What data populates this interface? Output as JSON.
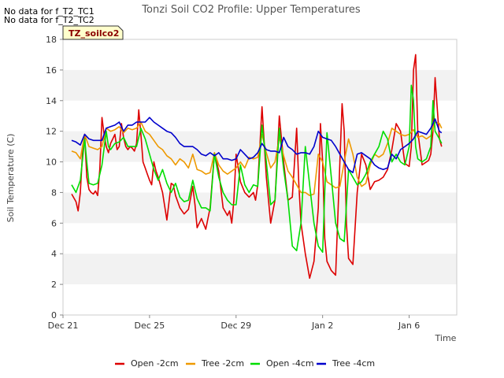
{
  "notes": [
    "No data for f_T2_TC1",
    "No data for f_T2_TC2"
  ],
  "tag_label": "TZ_soilco2",
  "chart_data": {
    "type": "line",
    "title": "Tonzi Soil CO2 Profile: Upper Temperatures",
    "xlabel": "Time",
    "ylabel": "Soil Temperature (C)",
    "ylim": [
      0,
      18
    ],
    "xlim": [
      0,
      18.2
    ],
    "yticks": [
      0,
      2,
      4,
      6,
      8,
      10,
      12,
      14,
      16,
      18
    ],
    "xticks": [
      {
        "label": "Dec 21",
        "value": 0
      },
      {
        "label": "Dec 25",
        "value": 4
      },
      {
        "label": "Dec 29",
        "value": 8
      },
      {
        "label": "Jan 2",
        "value": 12
      },
      {
        "label": "Jan 6",
        "value": 16
      }
    ],
    "grid": "horizontal alternating bands",
    "legend_position": "bottom",
    "series": [
      {
        "name": "Open -2cm",
        "color": "#dd0000",
        "x": [
          0.4,
          0.6,
          0.7,
          0.8,
          0.9,
          1.0,
          1.1,
          1.2,
          1.3,
          1.4,
          1.5,
          1.6,
          1.7,
          1.8,
          1.9,
          2.0,
          2.1,
          2.2,
          2.3,
          2.4,
          2.5,
          2.6,
          2.7,
          2.8,
          2.9,
          3.0,
          3.1,
          3.2,
          3.3,
          3.4,
          3.5,
          3.6,
          3.7,
          3.8,
          3.9,
          4.0,
          4.1,
          4.2,
          4.3,
          4.4,
          4.6,
          4.8,
          5.0,
          5.1,
          5.2,
          5.4,
          5.6,
          5.8,
          6.0,
          6.1,
          6.2,
          6.4,
          6.6,
          6.8,
          7.0,
          7.2,
          7.4,
          7.6,
          7.7,
          7.8,
          7.9,
          8.0,
          8.2,
          8.4,
          8.6,
          8.8,
          8.9,
          9.0,
          9.2,
          9.4,
          9.6,
          9.8,
          10.0,
          10.2,
          10.4,
          10.6,
          10.8,
          10.9,
          11.0,
          11.2,
          11.4,
          11.6,
          11.8,
          11.9,
          12.0,
          12.1,
          12.2,
          12.4,
          12.6,
          12.8,
          12.9,
          13.0,
          13.1,
          13.2,
          13.4,
          13.6,
          13.8,
          14.0,
          14.2,
          14.4,
          14.6,
          14.8,
          15.0,
          15.2,
          15.4,
          15.6,
          15.8,
          15.9,
          16.0,
          16.1,
          16.2,
          16.3,
          16.4,
          16.6,
          16.8,
          16.9,
          17.0,
          17.1,
          17.2,
          17.4,
          17.5
        ],
        "y": [
          7.9,
          7.4,
          6.8,
          8.0,
          10.5,
          11.8,
          9.0,
          8.2,
          8.0,
          7.9,
          8.1,
          7.8,
          9.5,
          12.9,
          11.8,
          11.0,
          10.6,
          11.2,
          11.5,
          11.8,
          10.8,
          11.0,
          12.5,
          11.6,
          11.0,
          10.8,
          11.0,
          10.9,
          10.7,
          11.2,
          13.4,
          11.8,
          10.0,
          9.6,
          9.2,
          8.8,
          8.5,
          10.0,
          9.4,
          9.0,
          8.0,
          6.2,
          8.6,
          8.5,
          7.8,
          7.0,
          6.6,
          6.9,
          8.4,
          7.2,
          5.7,
          6.3,
          5.6,
          7.0,
          10.6,
          9.4,
          7.0,
          6.5,
          6.8,
          6.0,
          7.5,
          10.5,
          8.7,
          8.0,
          7.7,
          8.0,
          7.5,
          8.5,
          13.6,
          9.0,
          6.0,
          7.5,
          13.0,
          10.0,
          7.5,
          7.7,
          12.2,
          8.5,
          6.0,
          4.0,
          2.4,
          3.5,
          7.0,
          12.5,
          10.0,
          5.0,
          3.5,
          2.9,
          2.6,
          10.0,
          13.8,
          12.0,
          6.0,
          3.7,
          3.3,
          8.0,
          10.5,
          9.8,
          8.2,
          8.7,
          8.8,
          9.0,
          9.5,
          10.8,
          12.5,
          12.0,
          9.9,
          9.8,
          9.7,
          11.0,
          16.0,
          17.0,
          12.0,
          9.8,
          10.0,
          10.1,
          10.5,
          12.0,
          15.5,
          11.5,
          11.0
        ]
      },
      {
        "name": "Tree -2cm",
        "color": "#ee9900",
        "x": [
          0.4,
          0.6,
          0.8,
          1.0,
          1.2,
          1.4,
          1.6,
          1.8,
          2.0,
          2.2,
          2.4,
          2.6,
          2.8,
          3.0,
          3.2,
          3.4,
          3.6,
          3.8,
          4.0,
          4.2,
          4.4,
          4.6,
          4.8,
          5.0,
          5.2,
          5.4,
          5.6,
          5.8,
          6.0,
          6.2,
          6.4,
          6.6,
          6.8,
          7.0,
          7.2,
          7.4,
          7.6,
          7.8,
          8.0,
          8.2,
          8.4,
          8.6,
          8.8,
          9.0,
          9.2,
          9.4,
          9.6,
          9.8,
          10.0,
          10.2,
          10.4,
          10.6,
          10.8,
          11.0,
          11.2,
          11.4,
          11.6,
          11.8,
          12.0,
          12.2,
          12.4,
          12.6,
          12.8,
          13.0,
          13.2,
          13.4,
          13.6,
          13.8,
          14.0,
          14.2,
          14.4,
          14.6,
          14.8,
          15.0,
          15.2,
          15.4,
          15.6,
          15.8,
          16.0,
          16.2,
          16.4,
          16.6,
          16.8,
          17.0,
          17.2,
          17.4,
          17.5
        ],
        "y": [
          10.7,
          10.6,
          10.2,
          11.8,
          11.0,
          10.9,
          10.8,
          11.0,
          12.2,
          12.0,
          12.1,
          12.3,
          11.9,
          12.2,
          12.1,
          12.2,
          12.6,
          12.0,
          11.8,
          11.4,
          11.0,
          10.8,
          10.4,
          10.2,
          9.8,
          10.2,
          10.0,
          9.6,
          10.5,
          9.5,
          9.4,
          9.2,
          9.3,
          10.6,
          9.8,
          9.4,
          9.2,
          9.4,
          9.6,
          10.0,
          9.6,
          10.3,
          10.2,
          10.3,
          11.8,
          10.6,
          9.6,
          10.0,
          11.6,
          10.4,
          9.4,
          9.0,
          8.5,
          8.0,
          8.0,
          7.8,
          7.9,
          10.5,
          10.0,
          8.7,
          8.5,
          8.3,
          8.4,
          10.0,
          11.5,
          10.5,
          9.0,
          8.4,
          8.6,
          9.8,
          10.5,
          10.3,
          10.5,
          11.2,
          12.2,
          12.0,
          11.8,
          11.7,
          11.8,
          12.1,
          11.6,
          11.7,
          11.5,
          11.7,
          12.6,
          12.5,
          12.2
        ]
      },
      {
        "name": "Open -4cm",
        "color": "#00dd00",
        "x": [
          0.4,
          0.6,
          0.8,
          1.0,
          1.1,
          1.2,
          1.4,
          1.6,
          1.8,
          2.0,
          2.1,
          2.2,
          2.4,
          2.6,
          2.8,
          3.0,
          3.2,
          3.4,
          3.6,
          3.8,
          4.0,
          4.2,
          4.4,
          4.6,
          4.8,
          5.0,
          5.2,
          5.4,
          5.6,
          5.8,
          6.0,
          6.2,
          6.4,
          6.6,
          6.8,
          7.0,
          7.2,
          7.4,
          7.6,
          7.8,
          8.0,
          8.2,
          8.4,
          8.6,
          8.8,
          9.0,
          9.2,
          9.4,
          9.6,
          9.8,
          10.0,
          10.2,
          10.4,
          10.6,
          10.8,
          11.0,
          11.2,
          11.4,
          11.6,
          11.8,
          12.0,
          12.1,
          12.2,
          12.4,
          12.6,
          12.8,
          13.0,
          13.2,
          13.4,
          13.6,
          13.8,
          14.0,
          14.2,
          14.4,
          14.6,
          14.8,
          15.0,
          15.2,
          15.4,
          15.6,
          15.8,
          16.0,
          16.1,
          16.2,
          16.3,
          16.4,
          16.6,
          16.8,
          17.0,
          17.1,
          17.2,
          17.4,
          17.5
        ],
        "y": [
          8.5,
          8.0,
          8.8,
          11.5,
          10.0,
          8.6,
          8.5,
          8.6,
          9.8,
          12.0,
          11.0,
          10.8,
          11.2,
          11.3,
          11.6,
          11.0,
          11.0,
          11.0,
          12.2,
          11.5,
          10.5,
          9.5,
          8.8,
          9.5,
          8.6,
          8.0,
          8.6,
          7.7,
          7.4,
          7.5,
          8.8,
          7.6,
          7.0,
          7.0,
          6.8,
          10.5,
          9.0,
          8.0,
          7.5,
          7.2,
          7.2,
          9.8,
          8.5,
          8.0,
          8.5,
          8.4,
          12.4,
          10.0,
          7.2,
          7.5,
          12.2,
          9.5,
          7.5,
          4.5,
          4.2,
          6.0,
          11.0,
          8.5,
          6.0,
          4.5,
          4.1,
          8.0,
          11.9,
          9.0,
          6.0,
          5.0,
          4.8,
          9.5,
          9.0,
          8.5,
          8.7,
          9.2,
          10.0,
          10.5,
          11.0,
          12.0,
          11.5,
          10.0,
          10.5,
          10.0,
          9.8,
          11.0,
          15.0,
          14.0,
          11.0,
          10.2,
          10.0,
          10.2,
          11.0,
          14.0,
          12.0,
          11.5,
          11.2
        ]
      },
      {
        "name": "Tree -4cm",
        "color": "#0000cc",
        "x": [
          0.4,
          0.6,
          0.8,
          1.0,
          1.2,
          1.4,
          1.6,
          1.8,
          2.0,
          2.2,
          2.4,
          2.6,
          2.8,
          3.0,
          3.2,
          3.4,
          3.6,
          3.8,
          4.0,
          4.2,
          4.4,
          4.6,
          4.8,
          5.0,
          5.2,
          5.4,
          5.6,
          5.8,
          6.0,
          6.2,
          6.4,
          6.6,
          6.8,
          7.0,
          7.2,
          7.4,
          7.6,
          7.8,
          8.0,
          8.2,
          8.4,
          8.6,
          8.8,
          9.0,
          9.2,
          9.4,
          9.6,
          9.8,
          10.0,
          10.2,
          10.4,
          10.6,
          10.8,
          11.0,
          11.2,
          11.4,
          11.6,
          11.8,
          12.0,
          12.2,
          12.4,
          12.6,
          12.8,
          13.0,
          13.2,
          13.4,
          13.6,
          13.8,
          14.0,
          14.2,
          14.4,
          14.6,
          14.8,
          15.0,
          15.2,
          15.4,
          15.6,
          15.8,
          16.0,
          16.2,
          16.4,
          16.6,
          16.8,
          17.0,
          17.2,
          17.4,
          17.5
        ],
        "y": [
          11.4,
          11.3,
          11.1,
          11.8,
          11.5,
          11.4,
          11.4,
          11.4,
          12.2,
          12.3,
          12.4,
          12.6,
          12.0,
          12.4,
          12.4,
          12.6,
          12.6,
          12.6,
          12.9,
          12.6,
          12.4,
          12.2,
          12.0,
          11.9,
          11.6,
          11.2,
          11.0,
          11.0,
          11.0,
          10.8,
          10.5,
          10.4,
          10.6,
          10.4,
          10.6,
          10.2,
          10.2,
          10.1,
          10.2,
          10.8,
          10.5,
          10.2,
          10.3,
          10.6,
          11.2,
          10.8,
          10.7,
          10.7,
          10.6,
          11.6,
          11.0,
          10.8,
          10.5,
          10.6,
          10.6,
          10.5,
          11.0,
          12.0,
          11.6,
          11.5,
          11.4,
          11.0,
          10.5,
          10.0,
          9.5,
          9.3,
          10.5,
          10.6,
          10.4,
          10.2,
          9.8,
          9.6,
          9.5,
          9.6,
          10.5,
          10.2,
          10.8,
          11.0,
          11.2,
          11.5,
          12.0,
          11.9,
          11.8,
          12.2,
          12.8,
          12.0,
          11.9
        ]
      }
    ]
  }
}
